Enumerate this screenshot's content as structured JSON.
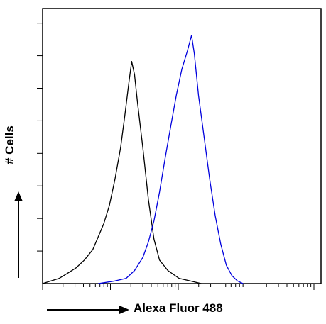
{
  "chart_data": {
    "type": "histogram-overlay",
    "title": "",
    "xlabel": "Alexa Fluor 488",
    "ylabel": "# Cells",
    "x_scale": "log",
    "xlim": [
      0,
      1
    ],
    "ylim": [
      0,
      1
    ],
    "grid": false,
    "legend": "none",
    "series": [
      {
        "color": "#000000",
        "points": [
          [
            0.0,
            0.0
          ],
          [
            0.03,
            0.01
          ],
          [
            0.06,
            0.02
          ],
          [
            0.09,
            0.04
          ],
          [
            0.12,
            0.06
          ],
          [
            0.15,
            0.09
          ],
          [
            0.18,
            0.13
          ],
          [
            0.2,
            0.18
          ],
          [
            0.22,
            0.23
          ],
          [
            0.24,
            0.3
          ],
          [
            0.26,
            0.4
          ],
          [
            0.28,
            0.52
          ],
          [
            0.295,
            0.64
          ],
          [
            0.31,
            0.77
          ],
          [
            0.32,
            0.85
          ],
          [
            0.33,
            0.8
          ],
          [
            0.34,
            0.7
          ],
          [
            0.36,
            0.52
          ],
          [
            0.38,
            0.32
          ],
          [
            0.4,
            0.17
          ],
          [
            0.42,
            0.09
          ],
          [
            0.45,
            0.05
          ],
          [
            0.49,
            0.02
          ],
          [
            0.53,
            0.01
          ],
          [
            0.57,
            0.0
          ]
        ]
      },
      {
        "color": "#0000dd",
        "points": [
          [
            0.2,
            0.0
          ],
          [
            0.26,
            0.01
          ],
          [
            0.3,
            0.02
          ],
          [
            0.33,
            0.05
          ],
          [
            0.36,
            0.1
          ],
          [
            0.38,
            0.16
          ],
          [
            0.4,
            0.24
          ],
          [
            0.42,
            0.35
          ],
          [
            0.44,
            0.48
          ],
          [
            0.46,
            0.6
          ],
          [
            0.48,
            0.72
          ],
          [
            0.5,
            0.82
          ],
          [
            0.52,
            0.89
          ],
          [
            0.535,
            0.95
          ],
          [
            0.545,
            0.88
          ],
          [
            0.56,
            0.72
          ],
          [
            0.58,
            0.56
          ],
          [
            0.6,
            0.4
          ],
          [
            0.62,
            0.26
          ],
          [
            0.64,
            0.15
          ],
          [
            0.66,
            0.07
          ],
          [
            0.68,
            0.03
          ],
          [
            0.7,
            0.01
          ],
          [
            0.72,
            0.0
          ]
        ]
      }
    ]
  },
  "colors": {
    "axis": "#000000",
    "arrow": "#000000"
  }
}
